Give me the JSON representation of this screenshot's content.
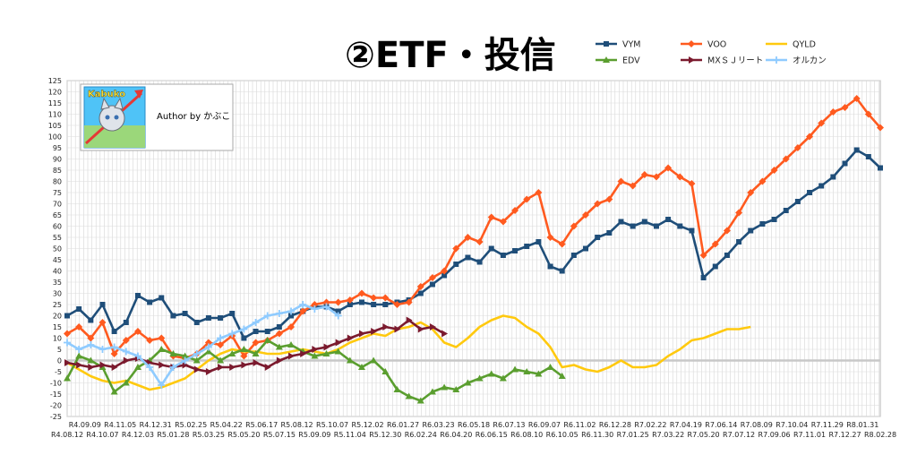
{
  "chart_data": {
    "type": "line",
    "title": "②ETF・投信",
    "ylim": [
      -25,
      125
    ],
    "y_ticks": [
      125,
      120,
      115,
      110,
      105,
      100,
      95,
      90,
      85,
      80,
      75,
      70,
      65,
      60,
      55,
      50,
      45,
      40,
      35,
      30,
      25,
      20,
      15,
      10,
      5,
      0,
      -5,
      -10,
      -15,
      -20,
      -25
    ],
    "x_labels": [
      "R4.08.12",
      "R4.09.09",
      "R4.10.07",
      "R4.11.05",
      "R4.12.03",
      "R4.12.31",
      "R5.01.28",
      "R5.02.25",
      "R5.03.25",
      "R5.04.22",
      "R5.05.20",
      "R5.06.17",
      "R5.07.15",
      "R5.08.12",
      "R5.09.09",
      "R5.10.07",
      "R5.11.04",
      "R5.12.02",
      "R5.12.30",
      "R6.01.27",
      "R6.02.24",
      "R6.03.23",
      "R6.04.20",
      "R6.05.18",
      "R6.06.15",
      "R6.07.13",
      "R6.08.10",
      "R6.09.07",
      "R6.10.05",
      "R6.11.02",
      "R6.11.30",
      "R6.12.28",
      "R7.01.25",
      "R7.02.22",
      "R7.03.22",
      "R7.04.19",
      "R7.05.20",
      "R7.06.14",
      "R7.07.12",
      "R7.08.09",
      "R7.09.06",
      "R7.10.04",
      "R7.11.01",
      "R7.11.29",
      "R7.12.27",
      "R8.01.31",
      "R8.02.28"
    ],
    "grid": true,
    "legend_position": "top-right",
    "author_label": "Author by かぶこ",
    "logo_text": "Kabuko",
    "series": [
      {
        "name": "VYM",
        "color": "#1f4e79",
        "marker": "square",
        "points": [
          [
            0,
            20
          ],
          [
            1,
            23
          ],
          [
            2,
            18
          ],
          [
            3,
            25
          ],
          [
            4,
            13
          ],
          [
            5,
            17
          ],
          [
            6,
            29
          ],
          [
            7,
            26
          ],
          [
            8,
            28
          ],
          [
            9,
            20
          ],
          [
            10,
            21
          ],
          [
            11,
            17
          ],
          [
            12,
            19
          ],
          [
            13,
            19
          ],
          [
            14,
            21
          ],
          [
            15,
            10
          ],
          [
            16,
            13
          ],
          [
            17,
            13
          ],
          [
            18,
            15
          ],
          [
            19,
            20
          ],
          [
            20,
            22
          ],
          [
            21,
            24
          ],
          [
            22,
            24
          ],
          [
            23,
            22
          ],
          [
            24,
            25
          ],
          [
            25,
            26
          ],
          [
            26,
            25
          ],
          [
            27,
            25
          ],
          [
            28,
            26
          ],
          [
            29,
            27
          ],
          [
            30,
            30
          ],
          [
            31,
            34
          ],
          [
            32,
            38
          ],
          [
            33,
            43
          ],
          [
            34,
            46
          ],
          [
            35,
            44
          ],
          [
            36,
            50
          ],
          [
            37,
            47
          ],
          [
            38,
            49
          ],
          [
            39,
            51
          ],
          [
            40,
            53
          ],
          [
            41,
            42
          ],
          [
            42,
            40
          ],
          [
            43,
            47
          ],
          [
            44,
            50
          ],
          [
            45,
            55
          ],
          [
            46,
            57
          ],
          [
            47,
            62
          ],
          [
            48,
            60
          ],
          [
            49,
            62
          ],
          [
            50,
            60
          ],
          [
            51,
            63
          ],
          [
            52,
            60
          ],
          [
            53,
            58
          ],
          [
            54,
            37
          ],
          [
            55,
            42
          ],
          [
            56,
            47
          ],
          [
            57,
            53
          ],
          [
            58,
            58
          ],
          [
            59,
            61
          ],
          [
            60,
            63
          ],
          [
            61,
            67
          ],
          [
            62,
            71
          ],
          [
            63,
            75
          ],
          [
            64,
            78
          ],
          [
            65,
            82
          ],
          [
            66,
            88
          ],
          [
            67,
            94
          ],
          [
            68,
            91
          ],
          [
            69,
            86
          ]
        ]
      },
      {
        "name": "VOO",
        "color": "#ff5a1f",
        "marker": "diamond",
        "points": [
          [
            0,
            12
          ],
          [
            1,
            15
          ],
          [
            2,
            10
          ],
          [
            3,
            17
          ],
          [
            4,
            3
          ],
          [
            5,
            9
          ],
          [
            6,
            13
          ],
          [
            7,
            9
          ],
          [
            8,
            10
          ],
          [
            9,
            2
          ],
          [
            10,
            1
          ],
          [
            11,
            3
          ],
          [
            12,
            8
          ],
          [
            13,
            7
          ],
          [
            14,
            11
          ],
          [
            15,
            2
          ],
          [
            16,
            8
          ],
          [
            17,
            9
          ],
          [
            18,
            12
          ],
          [
            19,
            15
          ],
          [
            20,
            22
          ],
          [
            21,
            25
          ],
          [
            22,
            26
          ],
          [
            23,
            26
          ],
          [
            24,
            27
          ],
          [
            25,
            30
          ],
          [
            26,
            28
          ],
          [
            27,
            28
          ],
          [
            28,
            25
          ],
          [
            29,
            26
          ],
          [
            30,
            33
          ],
          [
            31,
            37
          ],
          [
            32,
            40
          ],
          [
            33,
            50
          ],
          [
            34,
            55
          ],
          [
            35,
            53
          ],
          [
            36,
            64
          ],
          [
            37,
            62
          ],
          [
            38,
            67
          ],
          [
            39,
            72
          ],
          [
            40,
            75
          ],
          [
            41,
            55
          ],
          [
            42,
            52
          ],
          [
            43,
            60
          ],
          [
            44,
            65
          ],
          [
            45,
            70
          ],
          [
            46,
            72
          ],
          [
            47,
            80
          ],
          [
            48,
            78
          ],
          [
            49,
            83
          ],
          [
            50,
            82
          ],
          [
            51,
            86
          ],
          [
            52,
            82
          ],
          [
            53,
            79
          ],
          [
            54,
            47
          ],
          [
            55,
            52
          ],
          [
            56,
            58
          ],
          [
            57,
            66
          ],
          [
            58,
            75
          ],
          [
            59,
            80
          ],
          [
            60,
            85
          ],
          [
            61,
            90
          ],
          [
            62,
            95
          ],
          [
            63,
            100
          ],
          [
            64,
            106
          ],
          [
            65,
            111
          ],
          [
            66,
            113
          ],
          [
            67,
            117
          ],
          [
            68,
            110
          ],
          [
            69,
            104
          ]
        ]
      },
      {
        "name": "QYLD",
        "color": "#ffc90e",
        "marker": "none",
        "points": [
          [
            0,
            -1
          ],
          [
            1,
            -4
          ],
          [
            2,
            -7
          ],
          [
            3,
            -9
          ],
          [
            4,
            -10
          ],
          [
            5,
            -9
          ],
          [
            6,
            -11
          ],
          [
            7,
            -13
          ],
          [
            8,
            -12
          ],
          [
            9,
            -10
          ],
          [
            10,
            -8
          ],
          [
            11,
            -4
          ],
          [
            12,
            0
          ],
          [
            13,
            3
          ],
          [
            14,
            5
          ],
          [
            15,
            4
          ],
          [
            16,
            4
          ],
          [
            17,
            3
          ],
          [
            18,
            3
          ],
          [
            19,
            4
          ],
          [
            20,
            5
          ],
          [
            21,
            4
          ],
          [
            22,
            3
          ],
          [
            23,
            5
          ],
          [
            24,
            8
          ],
          [
            25,
            10
          ],
          [
            26,
            12
          ],
          [
            27,
            11
          ],
          [
            28,
            14
          ],
          [
            29,
            15
          ],
          [
            30,
            17
          ],
          [
            31,
            14
          ],
          [
            32,
            8
          ],
          [
            33,
            6
          ],
          [
            34,
            10
          ],
          [
            35,
            15
          ],
          [
            36,
            18
          ],
          [
            37,
            20
          ],
          [
            38,
            19
          ],
          [
            39,
            15
          ],
          [
            40,
            12
          ],
          [
            41,
            6
          ],
          [
            42,
            -3
          ],
          [
            43,
            -2
          ],
          [
            44,
            -4
          ],
          [
            45,
            -5
          ],
          [
            46,
            -3
          ],
          [
            47,
            0
          ],
          [
            48,
            -3
          ],
          [
            49,
            -3
          ],
          [
            50,
            -2
          ],
          [
            51,
            2
          ],
          [
            52,
            5
          ],
          [
            53,
            9
          ],
          [
            54,
            10
          ],
          [
            55,
            12
          ],
          [
            56,
            14
          ],
          [
            57,
            14
          ],
          [
            58,
            15
          ]
        ]
      },
      {
        "name": "EDV",
        "color": "#5a9e2f",
        "marker": "triangle",
        "points": [
          [
            0,
            -8
          ],
          [
            1,
            2
          ],
          [
            2,
            0
          ],
          [
            3,
            -3
          ],
          [
            4,
            -14
          ],
          [
            5,
            -10
          ],
          [
            6,
            -3
          ],
          [
            7,
            0
          ],
          [
            8,
            5
          ],
          [
            9,
            3
          ],
          [
            10,
            2
          ],
          [
            11,
            0
          ],
          [
            12,
            4
          ],
          [
            13,
            0
          ],
          [
            14,
            3
          ],
          [
            15,
            5
          ],
          [
            16,
            3
          ],
          [
            17,
            9
          ],
          [
            18,
            6
          ],
          [
            19,
            7
          ],
          [
            20,
            4
          ],
          [
            21,
            2
          ],
          [
            22,
            3
          ],
          [
            23,
            4
          ],
          [
            24,
            0
          ],
          [
            25,
            -3
          ],
          [
            26,
            0
          ],
          [
            27,
            -5
          ],
          [
            28,
            -13
          ],
          [
            29,
            -16
          ],
          [
            30,
            -18
          ],
          [
            31,
            -14
          ],
          [
            32,
            -12
          ],
          [
            33,
            -13
          ],
          [
            34,
            -10
          ],
          [
            35,
            -8
          ],
          [
            36,
            -6
          ],
          [
            37,
            -8
          ],
          [
            38,
            -4
          ],
          [
            39,
            -5
          ],
          [
            40,
            -6
          ],
          [
            41,
            -3
          ],
          [
            42,
            -7
          ]
        ]
      },
      {
        "name": "MXＳＪリート",
        "color": "#7b1a2e",
        "marker": "arrow",
        "points": [
          [
            0,
            -1
          ],
          [
            1,
            -2
          ],
          [
            2,
            -3
          ],
          [
            3,
            -2
          ],
          [
            4,
            -3
          ],
          [
            5,
            0
          ],
          [
            6,
            1
          ],
          [
            7,
            -1
          ],
          [
            8,
            -2
          ],
          [
            9,
            -3
          ],
          [
            10,
            -2
          ],
          [
            11,
            -4
          ],
          [
            12,
            -5
          ],
          [
            13,
            -3
          ],
          [
            14,
            -3
          ],
          [
            15,
            -2
          ],
          [
            16,
            -1
          ],
          [
            17,
            -3
          ],
          [
            18,
            0
          ],
          [
            19,
            2
          ],
          [
            20,
            3
          ],
          [
            21,
            5
          ],
          [
            22,
            6
          ],
          [
            23,
            8
          ],
          [
            24,
            10
          ],
          [
            25,
            12
          ],
          [
            26,
            13
          ],
          [
            27,
            15
          ],
          [
            28,
            14
          ],
          [
            29,
            18
          ],
          [
            30,
            14
          ],
          [
            31,
            15
          ],
          [
            32,
            12
          ]
        ]
      },
      {
        "name": "オルカン",
        "color": "#8fcbff",
        "marker": "cross",
        "points": [
          [
            0,
            8
          ],
          [
            1,
            5
          ],
          [
            2,
            7
          ],
          [
            3,
            5
          ],
          [
            4,
            6
          ],
          [
            5,
            4
          ],
          [
            6,
            2
          ],
          [
            7,
            -3
          ],
          [
            8,
            -11
          ],
          [
            9,
            -3
          ],
          [
            10,
            0
          ],
          [
            11,
            3
          ],
          [
            12,
            6
          ],
          [
            13,
            10
          ],
          [
            14,
            12
          ],
          [
            15,
            14
          ],
          [
            16,
            17
          ],
          [
            17,
            20
          ],
          [
            18,
            21
          ],
          [
            19,
            22
          ],
          [
            20,
            25
          ],
          [
            21,
            23
          ],
          [
            22,
            24
          ],
          [
            23,
            20
          ]
        ]
      }
    ]
  }
}
